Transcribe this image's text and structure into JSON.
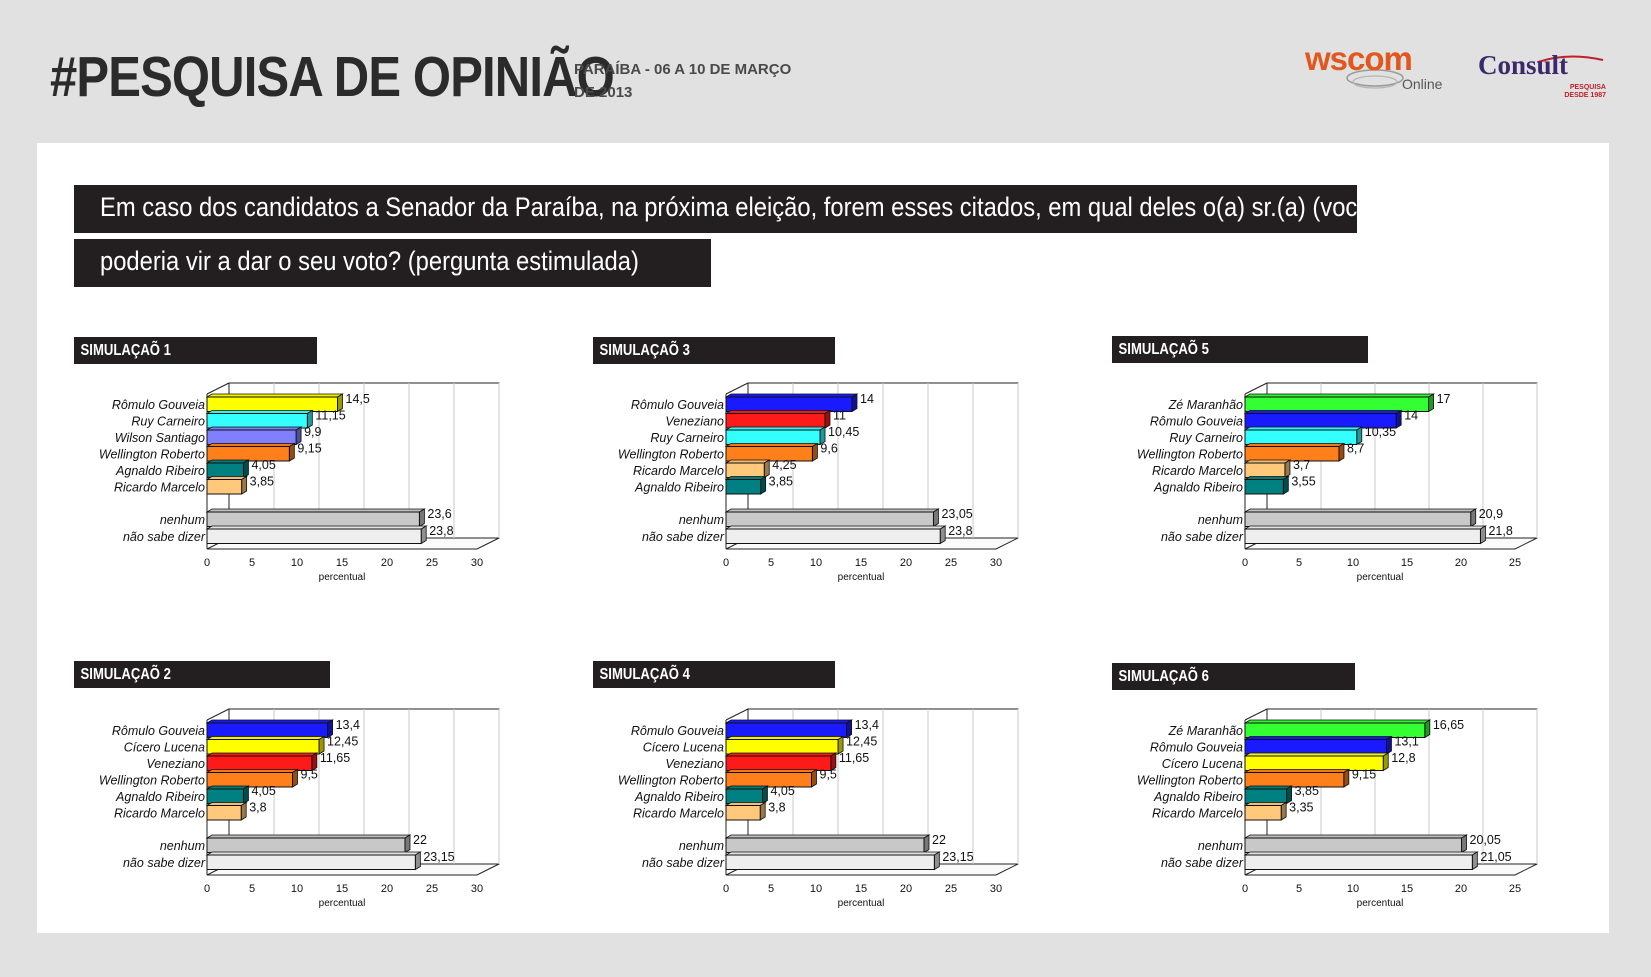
{
  "header": {
    "title": "#PESQUISA DE OPINIÃO",
    "subtitle_line1": "PARAÍBA - 06 A 10 DE MARÇO",
    "subtitle_line2": "DE 2013",
    "logo_wscom": "wscom",
    "logo_wscom_sub": "Online",
    "logo_consult": "Consult",
    "logo_consult_sub1": "PESQUISA",
    "logo_consult_sub2": "DESDE 1987"
  },
  "question": {
    "line1": "Em caso dos candidatos a Senador da Paraíba, na próxima eleição, forem esses citados, em qual deles o(a) sr.(a) (você)",
    "line2": "poderia vir a dar o seu voto? (pergunta estimulada)"
  },
  "colors": {
    "yellow": "#ffff00",
    "cyan": "#33ffff",
    "purple": "#8080ff",
    "orange": "#ff7f1a",
    "teal": "#008080",
    "peach": "#ffc87a",
    "blue": "#1a1aff",
    "red": "#ff1a1a",
    "green": "#33ff33",
    "gray": "#c8c8c8",
    "lightgray": "#eeeeee"
  },
  "chart_data": [
    {
      "title": "SIMULAÇAÕ 1",
      "type": "bar",
      "orientation": "horizontal",
      "xlabel": "percentual",
      "xlim": [
        0,
        30
      ],
      "xticks": [
        "0",
        "5",
        "10",
        "15",
        "20",
        "25",
        "30"
      ],
      "categories": [
        "Rômulo Gouveia",
        "Ruy Carneiro",
        "Wilson Santiago",
        "Wellington Roberto",
        "Agnaldo Ribeiro",
        "Ricardo Marcelo",
        "nenhum",
        "não sabe dizer"
      ],
      "values": [
        14.5,
        11.15,
        9.9,
        9.15,
        4.05,
        3.85,
        23.6,
        23.8
      ],
      "value_labels": [
        "14,5",
        "11,15",
        "9,9",
        "9,15",
        "4,05",
        "3,85",
        "23,6",
        "23,8"
      ],
      "colors": [
        "yellow",
        "cyan",
        "purple",
        "orange",
        "teal",
        "peach",
        "gray",
        "lightgray"
      ]
    },
    {
      "title": "SIMULAÇAÕ 3",
      "type": "bar",
      "orientation": "horizontal",
      "xlabel": "percentual",
      "xlim": [
        0,
        30
      ],
      "xticks": [
        "0",
        "5",
        "10",
        "15",
        "20",
        "25",
        "30"
      ],
      "categories": [
        "Rômulo Gouveia",
        "Veneziano",
        "Ruy Carneiro",
        "Wellington Roberto",
        "Ricardo Marcelo",
        "Agnaldo Ribeiro",
        "nenhum",
        "não sabe dizer"
      ],
      "values": [
        14,
        11,
        10.45,
        9.6,
        4.25,
        3.85,
        23.05,
        23.8
      ],
      "value_labels": [
        "14",
        "11",
        "10,45",
        "9,6",
        "4,25",
        "3,85",
        "23,05",
        "23,8"
      ],
      "colors": [
        "blue",
        "red",
        "cyan",
        "orange",
        "peach",
        "teal",
        "gray",
        "lightgray"
      ]
    },
    {
      "title": "SIMULAÇAÕ 5",
      "type": "bar",
      "orientation": "horizontal",
      "xlabel": "percentual",
      "xlim": [
        0,
        25
      ],
      "xticks": [
        "0",
        "5",
        "10",
        "15",
        "20",
        "25"
      ],
      "categories": [
        "Zé Maranhão",
        "Rômulo Gouveia",
        "Ruy Carneiro",
        "Wellington Roberto",
        "Ricardo Marcelo",
        "Agnaldo Ribeiro",
        "nenhum",
        "não sabe dizer"
      ],
      "values": [
        17,
        14,
        10.35,
        8.7,
        3.7,
        3.55,
        20.9,
        21.8
      ],
      "value_labels": [
        "17",
        "14",
        "10,35",
        "8,7",
        "3,7",
        "3,55",
        "20,9",
        "21,8"
      ],
      "colors": [
        "green",
        "blue",
        "cyan",
        "orange",
        "peach",
        "teal",
        "gray",
        "lightgray"
      ]
    },
    {
      "title": "SIMULAÇAÕ 2",
      "type": "bar",
      "orientation": "horizontal",
      "xlabel": "percentual",
      "xlim": [
        0,
        30
      ],
      "xticks": [
        "0",
        "5",
        "10",
        "15",
        "20",
        "25",
        "30"
      ],
      "categories": [
        "Rômulo Gouveia",
        "Cícero Lucena",
        "Veneziano",
        "Wellington Roberto",
        "Agnaldo Ribeiro",
        "Ricardo Marcelo",
        "nenhum",
        "não sabe dizer"
      ],
      "values": [
        13.4,
        12.45,
        11.65,
        9.5,
        4.05,
        3.8,
        22,
        23.15
      ],
      "value_labels": [
        "13,4",
        "12,45",
        "11,65",
        "9,5",
        "4,05",
        "3,8",
        "22",
        "23,15"
      ],
      "colors": [
        "blue",
        "yellow",
        "red",
        "orange",
        "teal",
        "peach",
        "gray",
        "lightgray"
      ]
    },
    {
      "title": "SIMULAÇAÕ 4",
      "type": "bar",
      "orientation": "horizontal",
      "xlabel": "percentual",
      "xlim": [
        0,
        30
      ],
      "xticks": [
        "0",
        "5",
        "10",
        "15",
        "20",
        "25",
        "30"
      ],
      "categories": [
        "Rômulo Gouveia",
        "Cícero Lucena",
        "Veneziano",
        "Wellington Roberto",
        "Agnaldo Ribeiro",
        "Ricardo Marcelo",
        "nenhum",
        "não sabe dizer"
      ],
      "values": [
        13.4,
        12.45,
        11.65,
        9.5,
        4.05,
        3.8,
        22,
        23.15
      ],
      "value_labels": [
        "13,4",
        "12,45",
        "11,65",
        "9,5",
        "4,05",
        "3,8",
        "22",
        "23,15"
      ],
      "colors": [
        "blue",
        "yellow",
        "red",
        "orange",
        "teal",
        "peach",
        "gray",
        "lightgray"
      ]
    },
    {
      "title": "SIMULAÇAÕ 6",
      "type": "bar",
      "orientation": "horizontal",
      "xlabel": "percentual",
      "xlim": [
        0,
        25
      ],
      "xticks": [
        "0",
        "5",
        "10",
        "15",
        "20",
        "25"
      ],
      "categories": [
        "Zé Maranhão",
        "Rômulo Gouveia",
        "Cícero Lucena",
        "Wellington Roberto",
        "Agnaldo Ribeiro",
        "Ricardo Marcelo",
        "nenhum",
        "não sabe dizer"
      ],
      "values": [
        16.65,
        13.1,
        12.8,
        9.15,
        3.85,
        3.35,
        20.05,
        21.05
      ],
      "value_labels": [
        "16,65",
        "13,1",
        "12,8",
        "9,15",
        "3,85",
        "3,35",
        "20,05",
        "21,05"
      ],
      "colors": [
        "green",
        "blue",
        "yellow",
        "orange",
        "teal",
        "peach",
        "gray",
        "lightgray"
      ]
    }
  ]
}
